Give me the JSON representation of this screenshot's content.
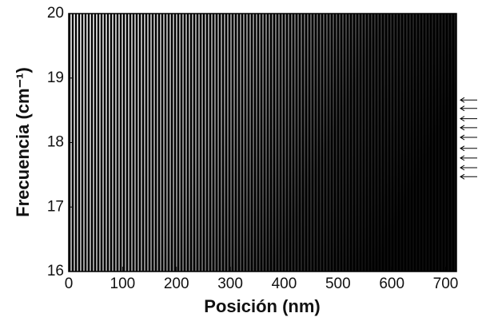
{
  "chart_data": {
    "type": "heatmap",
    "xlabel": "Posición (nm)",
    "ylabel": "Frecuencia (cm⁻¹)",
    "xlim": [
      0,
      720
    ],
    "ylim": [
      16,
      20
    ],
    "xticks": [
      0,
      100,
      200,
      300,
      400,
      500,
      600,
      700
    ],
    "yticks": [
      16,
      17,
      18,
      19,
      20
    ],
    "arrows": [
      18.66,
      18.53,
      18.37,
      18.23,
      18.08,
      17.91,
      17.76,
      17.61,
      17.47
    ]
  }
}
